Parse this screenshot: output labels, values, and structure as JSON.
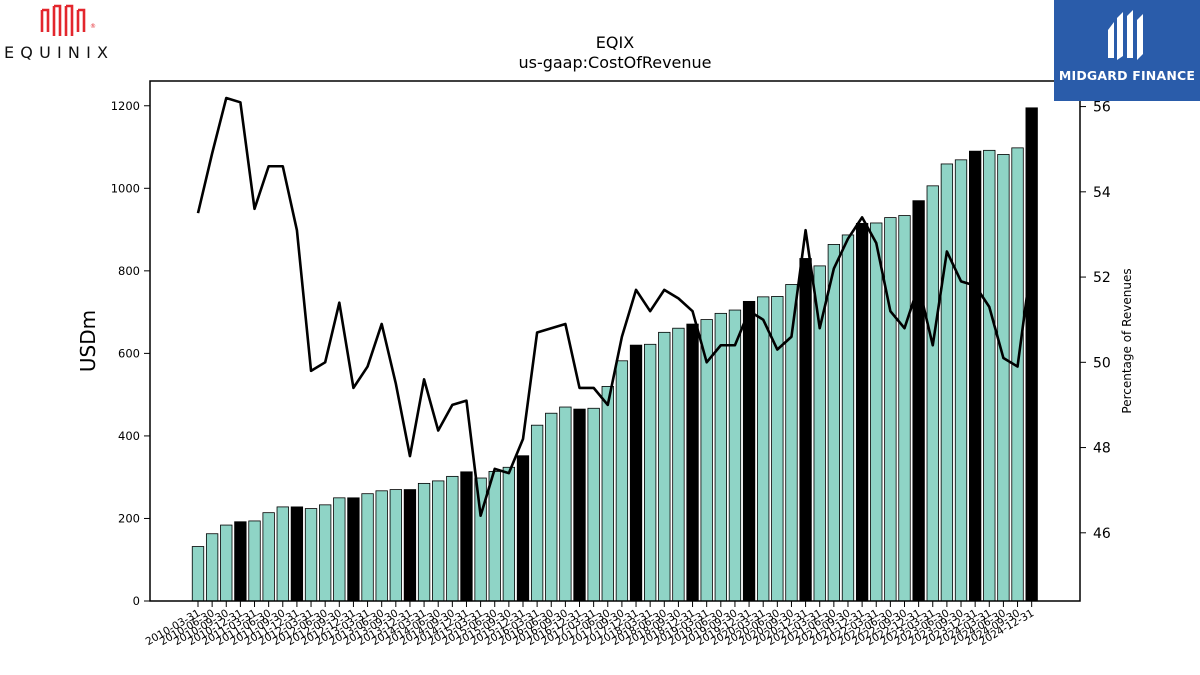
{
  "branding": {
    "company_logo_text": "EQUINIX",
    "publisher_logo_text": "MIDGARD FINANCE",
    "publisher_bg_color": "#2a5caa",
    "company_logo_color": "#e3262d"
  },
  "chart_data": {
    "type": "bar",
    "title": "EQIX",
    "subtitle": "us-gaap:CostOfRevenue",
    "ylabel": "USDm",
    "y2label": "Percentage of Revenues",
    "ylim": [
      0,
      1260
    ],
    "y2lim": [
      44.4,
      56.6
    ],
    "yticks": [
      0,
      200,
      400,
      600,
      800,
      1000,
      1200
    ],
    "y2ticks": [
      46,
      48,
      50,
      52,
      54,
      56
    ],
    "categories": [
      "2010-03-31",
      "2010-06-30",
      "2010-09-30",
      "2010-12-31",
      "2011-03-31",
      "2011-06-30",
      "2011-09-30",
      "2011-12-31",
      "2012-03-31",
      "2012-06-30",
      "2012-09-30",
      "2012-12-31",
      "2013-03-31",
      "2013-06-30",
      "2013-09-30",
      "2013-12-31",
      "2014-03-31",
      "2014-06-30",
      "2014-09-30",
      "2014-12-31",
      "2015-03-31",
      "2015-06-30",
      "2015-09-30",
      "2015-12-31",
      "2016-03-31",
      "2016-06-30",
      "2016-09-30",
      "2016-12-31",
      "2017-03-31",
      "2017-06-30",
      "2017-09-30",
      "2017-12-31",
      "2018-03-31",
      "2018-06-30",
      "2018-09-30",
      "2018-12-31",
      "2019-03-31",
      "2019-06-30",
      "2019-09-30",
      "2019-12-31",
      "2020-03-31",
      "2020-06-30",
      "2020-09-30",
      "2020-12-31",
      "2021-03-31",
      "2021-06-30",
      "2021-09-30",
      "2021-12-31",
      "2022-03-31",
      "2022-06-30",
      "2022-09-30",
      "2022-12-31",
      "2023-03-31",
      "2023-06-30",
      "2023-09-30",
      "2023-12-31",
      "2024-03-31",
      "2024-06-30",
      "2024-09-30",
      "2024-12-31"
    ],
    "series": [
      {
        "kind": "bar",
        "values": [
          132,
          163,
          184,
          192,
          194,
          214,
          228,
          228,
          224,
          233,
          250,
          250,
          260,
          267,
          270,
          270,
          285,
          291,
          302,
          313,
          298,
          314,
          324,
          352,
          426,
          455,
          470,
          465,
          467,
          520,
          582,
          620,
          622,
          651,
          661,
          671,
          682,
          697,
          705,
          726,
          737,
          738,
          767,
          830,
          812,
          864,
          887,
          915,
          916,
          929,
          934,
          970,
          1006,
          1059,
          1069,
          1090,
          1092,
          1082,
          1098,
          1195
        ]
      },
      {
        "kind": "line",
        "axis": "right",
        "values": [
          53.5,
          54.9,
          56.2,
          56.1,
          53.6,
          54.6,
          54.6,
          53.1,
          49.8,
          50.0,
          51.4,
          49.4,
          49.9,
          50.9,
          49.5,
          47.8,
          49.6,
          48.4,
          49.0,
          49.1,
          46.4,
          47.5,
          47.4,
          48.2,
          50.7,
          50.8,
          50.9,
          49.4,
          49.4,
          49.0,
          50.6,
          51.7,
          51.2,
          51.7,
          51.5,
          51.2,
          50.0,
          50.4,
          50.4,
          51.2,
          51.0,
          50.3,
          50.6,
          53.1,
          50.8,
          52.2,
          52.9,
          53.4,
          52.8,
          51.2,
          50.8,
          51.8,
          50.4,
          52.6,
          51.9,
          51.8,
          51.3,
          50.1,
          49.9,
          52.4
        ]
      }
    ],
    "colors": {
      "bar_normal": "#8fd4c6",
      "bar_quarter_end": "#000000",
      "line": "#000000"
    },
    "legend": "none",
    "grid": false
  }
}
